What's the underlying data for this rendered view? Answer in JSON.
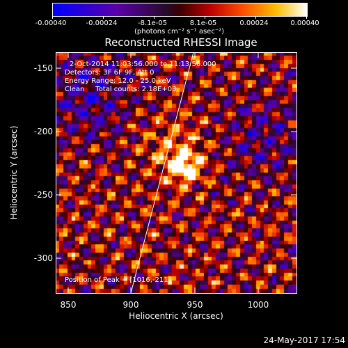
{
  "colorbar": {
    "tick_labels": [
      "-0.00040",
      "-0.00024",
      "-8.1e-05",
      "8.1e-05",
      "0.00024",
      "0.00040"
    ],
    "units_label": "(photons cm⁻² s⁻¹ asec⁻²)"
  },
  "plot": {
    "title": "Reconstructed RHESSI Image",
    "x_label": "Heliocentric X (arcsec)",
    "y_label": "Heliocentric Y (arcsec)",
    "x_ticks": [
      "850",
      "900",
      "950",
      "1000"
    ],
    "y_ticks": [
      "-150",
      "-200",
      "-250",
      "-300"
    ]
  },
  "annotations": {
    "time_range": "2-Oct-2014 11:03:56.000 to 11:13:56.000",
    "detectors": "Detectors: 3F 6F 9F, Att 0",
    "energy_range": "Energy Range: 12.0 - 25.0 keV",
    "clean_counts": "Clean     Total counts: 2.18E+03",
    "peak_position": "Position of Peak = [1016,-211]"
  },
  "footer": {
    "date_time": "24-May-2017 17:54"
  },
  "colors": {
    "background": "#000000",
    "foreground": "#ffffff"
  }
}
